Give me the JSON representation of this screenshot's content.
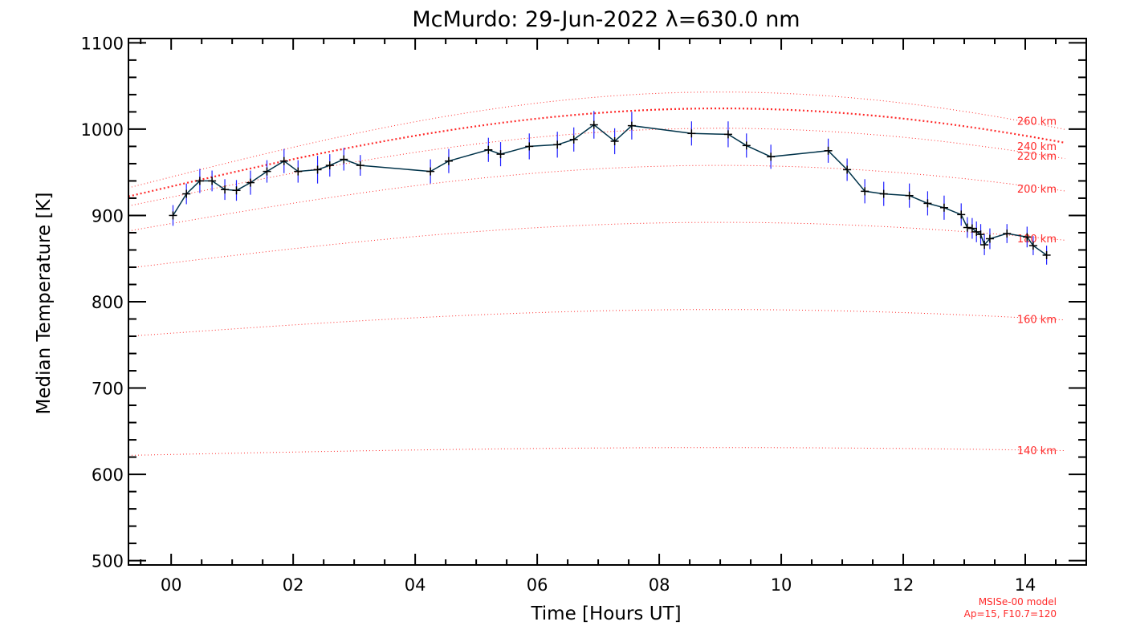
{
  "chart_data": {
    "type": "line",
    "title": "McMurdo: 29-Jun-2022 λ=630.0 nm",
    "xlabel": "Time [Hours UT]",
    "ylabel": "Median Temperature [K]",
    "xlim": [
      -0.7,
      15.0
    ],
    "ylim": [
      495,
      1105
    ],
    "x_ticks": [
      0,
      2,
      4,
      6,
      8,
      10,
      12,
      14
    ],
    "x_tick_labels": [
      "00",
      "02",
      "04",
      "06",
      "08",
      "10",
      "12",
      "14"
    ],
    "y_ticks": [
      500,
      600,
      700,
      800,
      900,
      1000,
      1100
    ],
    "y_tick_labels": [
      "500",
      "600",
      "700",
      "800",
      "900",
      "1000",
      "1100"
    ],
    "colors": {
      "data_line": "#00334a",
      "error_bars": "#2020ff",
      "markers": "#000000",
      "model": "#ff2a2a"
    },
    "series": [
      {
        "x": [
          0.03,
          0.25,
          0.47,
          0.67,
          0.88,
          1.07,
          1.3,
          1.57,
          1.85,
          2.08,
          2.4,
          2.6,
          2.83,
          3.1,
          4.25,
          4.55,
          5.2,
          5.4,
          5.87,
          6.33,
          6.6,
          6.93,
          7.27,
          7.55,
          8.53,
          9.13,
          9.43,
          9.83,
          10.77,
          11.08,
          11.37,
          11.68,
          12.1,
          12.4,
          12.67,
          12.95,
          13.05,
          13.13,
          13.2,
          13.27,
          13.33,
          13.42,
          13.7,
          14.03,
          14.13,
          14.35
        ],
        "y": [
          900,
          925,
          940,
          940,
          930,
          929,
          938,
          951,
          963,
          951,
          953,
          958,
          965,
          958,
          951,
          963,
          976,
          971,
          980,
          982,
          988,
          1005,
          986,
          1004,
          995,
          994,
          981,
          968,
          975,
          953,
          928,
          925,
          923,
          914,
          909,
          901,
          886,
          885,
          881,
          878,
          866,
          873,
          879,
          875,
          865,
          854
        ],
        "err": [
          12,
          12,
          14,
          12,
          12,
          12,
          14,
          13,
          14,
          13,
          16,
          13,
          13,
          12,
          14,
          14,
          14,
          14,
          15,
          15,
          14,
          16,
          15,
          16,
          14,
          15,
          14,
          14,
          14,
          13,
          14,
          14,
          14,
          14,
          14,
          13,
          12,
          12,
          12,
          12,
          12,
          12,
          11,
          12,
          11,
          11
        ]
      }
    ],
    "model_curves": [
      {
        "label": "140 km",
        "peak": 631,
        "dip": 9,
        "bold": false
      },
      {
        "label": "160 km",
        "peak": 791,
        "dip": 31,
        "bold": false
      },
      {
        "label": "180 km",
        "peak": 892,
        "dip": 53,
        "bold": false
      },
      {
        "label": "200 km",
        "peak": 958,
        "dip": 76,
        "bold": false
      },
      {
        "label": "220 km",
        "peak": 1001,
        "dip": 90,
        "bold": false
      },
      {
        "label": "240 km",
        "peak": 1024,
        "dip": 102,
        "bold": true
      },
      {
        "label": "260 km",
        "peak": 1043,
        "dip": 111,
        "bold": false
      }
    ],
    "model_peak_time": 9.0,
    "model_note_lines": [
      "MSISe-00 model",
      "Ap=15, F10.7=120"
    ]
  }
}
